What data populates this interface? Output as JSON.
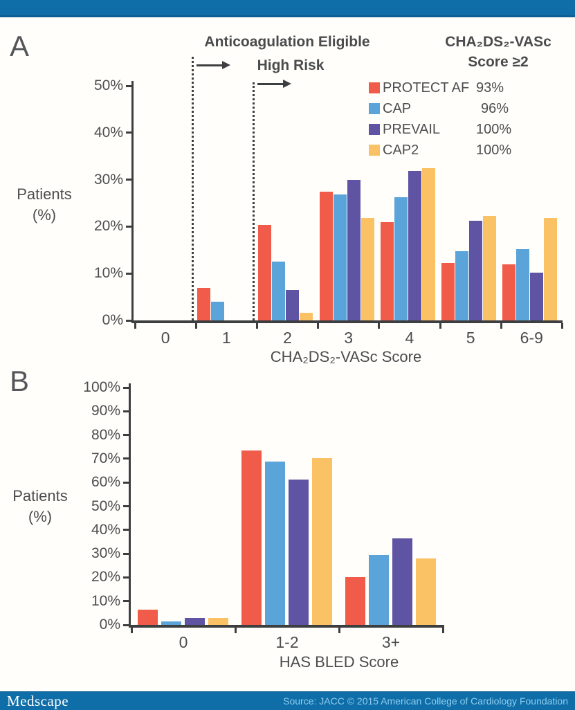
{
  "colors": {
    "banner": "#0f6ea7",
    "banner_edge": "#0d5f93",
    "background": "#fffefa",
    "axis": "#3d3e40",
    "text": "#4c4d4f",
    "footer_text": "#8ecdf2"
  },
  "panel_a": {
    "label": "A",
    "annotation_eligible": "Anticoagulation Eligible",
    "annotation_high_risk": "High Risk",
    "y_label_line1": "Patients",
    "y_label_line2": "(%)",
    "x_title": "CHA₂DS₂-VASc Score",
    "legend": {
      "title_line1": "CHA₂DS₂-VASc",
      "title_line2": "Score ≥2",
      "items": [
        {
          "label": "PROTECT AF",
          "value": "93%"
        },
        {
          "label": "CAP",
          "value": "96%"
        },
        {
          "label": "PREVAIL",
          "value": "100%"
        },
        {
          "label": "CAP2",
          "value": "100%"
        }
      ]
    }
  },
  "panel_b": {
    "label": "B",
    "y_label_line1": "Patients",
    "y_label_line2": "(%)",
    "x_title": "HAS BLED Score"
  },
  "chart_data": [
    {
      "id": "panel-a",
      "type": "bar",
      "title": "A",
      "categories": [
        "0",
        "1",
        "2",
        "3",
        "4",
        "5",
        "6-9"
      ],
      "series": [
        {
          "name": "PROTECT AF",
          "color": "#f05b4a",
          "values": [
            0,
            7,
            20.3,
            27.5,
            21,
            12.2,
            12
          ]
        },
        {
          "name": "CAP",
          "color": "#5ba4d9",
          "values": [
            0,
            4,
            12.6,
            26.8,
            26.3,
            14.7,
            15.2
          ]
        },
        {
          "name": "PREVAIL",
          "color": "#5e54a3",
          "values": [
            0,
            0,
            6.5,
            30,
            31.9,
            21.3,
            10.2
          ]
        },
        {
          "name": "CAP2",
          "color": "#fac264",
          "values": [
            0,
            0,
            1.6,
            21.9,
            32.4,
            22.3,
            21.9
          ]
        }
      ],
      "xlabel": "CHA₂DS₂-VASc Score",
      "ylabel": "Patients (%)",
      "ylim": [
        0,
        50
      ],
      "ytick_step": 10,
      "grid": false,
      "legend_position": "top-right",
      "legend_note": {
        "title": "CHA₂DS₂-VASc Score ≥2",
        "values": {
          "PROTECT AF": "93%",
          "CAP": "96%",
          "PREVAIL": "100%",
          "CAP2": "100%"
        }
      },
      "annotations": [
        {
          "text": "Anticoagulation Eligible",
          "dashed_line_between": [
            "0",
            "1"
          ],
          "arrow": "right"
        },
        {
          "text": "High Risk",
          "dashed_line_between": [
            "1",
            "2"
          ],
          "arrow": "right"
        }
      ]
    },
    {
      "id": "panel-b",
      "type": "bar",
      "title": "B",
      "categories": [
        "0",
        "1-2",
        "3+"
      ],
      "series": [
        {
          "name": "PROTECT AF",
          "color": "#f05b4a",
          "values": [
            6.5,
            73.5,
            20
          ]
        },
        {
          "name": "CAP",
          "color": "#5ba4d9",
          "values": [
            1.5,
            68.8,
            29.5
          ]
        },
        {
          "name": "PREVAIL",
          "color": "#5e54a3",
          "values": [
            2.8,
            61.3,
            36.3
          ]
        },
        {
          "name": "CAP2",
          "color": "#fac264",
          "values": [
            2.8,
            70.2,
            28.1
          ]
        }
      ],
      "xlabel": "HAS BLED Score",
      "ylabel": "Patients (%)",
      "ylim": [
        0,
        100
      ],
      "ytick_step": 10,
      "grid": false
    }
  ],
  "footer": {
    "logo": "Medscape",
    "source": "Source: JACC © 2015 American College of Cardiology Foundation"
  }
}
